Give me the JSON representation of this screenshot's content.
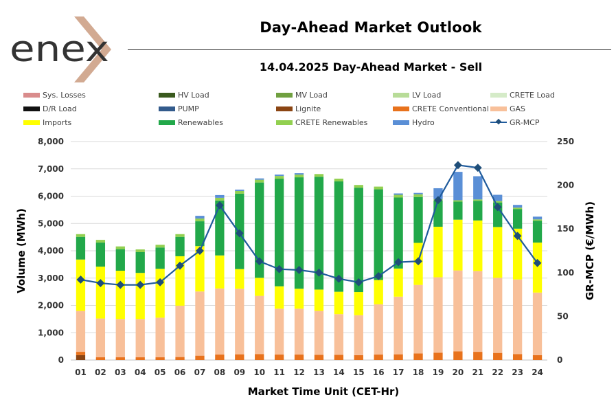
{
  "logo_text": "enex",
  "header": {
    "title": "Day-Ahead Market Outlook",
    "subtitle": "14.04.2025  Day-Ahead Market - Sell"
  },
  "colors": {
    "sys_losses": "#d98c8c",
    "hv_load": "#3a5a1e",
    "mv_load": "#70a040",
    "lv_load": "#b8dc98",
    "crete_load": "#d5ebc8",
    "dr_load": "#111111",
    "pump": "#335b8c",
    "lignite": "#8b4513",
    "crete_conventional": "#e8721c",
    "gas": "#f8c09a",
    "imports": "#ffff00",
    "renewables": "#22a84a",
    "crete_renewables": "#92d050",
    "hydro": "#5a8fd6",
    "gr_mcp": "#1f5b9c",
    "gr_mcp_marker": "#1f4e79",
    "logo_chevron": "#d2aa92",
    "logo_text": "#333333"
  },
  "chart_data": {
    "type": "bar",
    "stacked": true,
    "title": "14.04.2025  Day-Ahead Market - Sell",
    "xlabel": "Market Time Unit (CET-Hr)",
    "ylabel": "Volume (MWh)",
    "y2label": "GR-MCP (€/MWh)",
    "ylim": [
      0,
      8000
    ],
    "y2lim": [
      0,
      250
    ],
    "yticks": [
      "0",
      "1,000",
      "2,000",
      "3,000",
      "4,000",
      "5,000",
      "6,000",
      "7,000",
      "8,000"
    ],
    "y2ticks": [
      "0",
      "50",
      "100",
      "150",
      "200",
      "250"
    ],
    "grid": true,
    "legend_position": "top",
    "categories": [
      "01",
      "02",
      "03",
      "04",
      "05",
      "06",
      "07",
      "08",
      "09",
      "10",
      "11",
      "12",
      "13",
      "14",
      "15",
      "16",
      "17",
      "18",
      "19",
      "20",
      "21",
      "22",
      "23",
      "24"
    ],
    "legend": [
      {
        "key": "sys_losses",
        "label": "Sys. Losses",
        "kind": "bar"
      },
      {
        "key": "hv_load",
        "label": "HV Load",
        "kind": "bar"
      },
      {
        "key": "mv_load",
        "label": "MV Load",
        "kind": "bar"
      },
      {
        "key": "lv_load",
        "label": "LV Load",
        "kind": "bar"
      },
      {
        "key": "crete_load",
        "label": "CRETE Load",
        "kind": "bar"
      },
      {
        "key": "dr_load",
        "label": "D/R Load",
        "kind": "bar"
      },
      {
        "key": "pump",
        "label": "PUMP",
        "kind": "bar"
      },
      {
        "key": "lignite",
        "label": "Lignite",
        "kind": "bar"
      },
      {
        "key": "crete_conventional",
        "label": "CRETE Conventional",
        "kind": "bar"
      },
      {
        "key": "gas",
        "label": "GAS",
        "kind": "bar"
      },
      {
        "key": "imports",
        "label": "Imports",
        "kind": "bar"
      },
      {
        "key": "renewables",
        "label": "Renewables",
        "kind": "bar"
      },
      {
        "key": "crete_renewables",
        "label": "CRETE Renewables",
        "kind": "bar"
      },
      {
        "key": "hydro",
        "label": "Hydro",
        "kind": "bar"
      },
      {
        "key": "gr_mcp",
        "label": "GR-MCP",
        "kind": "line"
      }
    ],
    "series": [
      {
        "key": "lignite",
        "name": "Lignite",
        "values": [
          180,
          0,
          0,
          0,
          0,
          0,
          0,
          0,
          0,
          0,
          0,
          0,
          0,
          0,
          0,
          0,
          0,
          0,
          0,
          0,
          0,
          0,
          0,
          0
        ]
      },
      {
        "key": "crete_conventional",
        "name": "CRETE Conventional",
        "values": [
          120,
          100,
          100,
          100,
          100,
          110,
          160,
          200,
          210,
          220,
          200,
          200,
          190,
          190,
          180,
          200,
          210,
          240,
          270,
          320,
          300,
          260,
          220,
          180
        ]
      },
      {
        "key": "gas",
        "name": "GAS",
        "values": [
          1500,
          1420,
          1400,
          1400,
          1450,
          1880,
          2350,
          2420,
          2400,
          2130,
          1680,
          1680,
          1610,
          1490,
          1460,
          1840,
          2110,
          2510,
          2760,
          2960,
          2960,
          2750,
          2730,
          2290
        ]
      },
      {
        "key": "imports",
        "name": "Imports",
        "values": [
          1880,
          1900,
          1770,
          1690,
          1790,
          1810,
          1660,
          1210,
          720,
          660,
          820,
          730,
          780,
          820,
          850,
          890,
          1030,
          1540,
          1850,
          1860,
          1850,
          1860,
          1860,
          1830
        ]
      },
      {
        "key": "renewables",
        "name": "Renewables",
        "values": [
          830,
          880,
          790,
          760,
          780,
          710,
          910,
          2010,
          2760,
          3490,
          3940,
          4080,
          4130,
          4040,
          3820,
          3320,
          2600,
          1680,
          960,
          660,
          720,
          900,
          720,
          800
        ]
      },
      {
        "key": "crete_renewables",
        "name": "CRETE Renewables",
        "values": [
          100,
          100,
          100,
          100,
          100,
          100,
          100,
          100,
          100,
          100,
          100,
          100,
          100,
          100,
          100,
          100,
          100,
          100,
          50,
          50,
          50,
          50,
          50,
          50
        ]
      },
      {
        "key": "hydro",
        "name": "Hydro",
        "values": [
          0,
          0,
          0,
          0,
          0,
          0,
          100,
          100,
          50,
          50,
          50,
          50,
          0,
          0,
          0,
          0,
          50,
          50,
          400,
          1040,
          850,
          230,
          100,
          100
        ]
      }
    ],
    "line": {
      "key": "gr_mcp",
      "name": "GR-MCP",
      "axis": "y2",
      "values": [
        92,
        88,
        86,
        86,
        89,
        108,
        125,
        177,
        145,
        113,
        104,
        103,
        100,
        93,
        89,
        96,
        112,
        113,
        183,
        223,
        220,
        175,
        142,
        111
      ]
    }
  }
}
